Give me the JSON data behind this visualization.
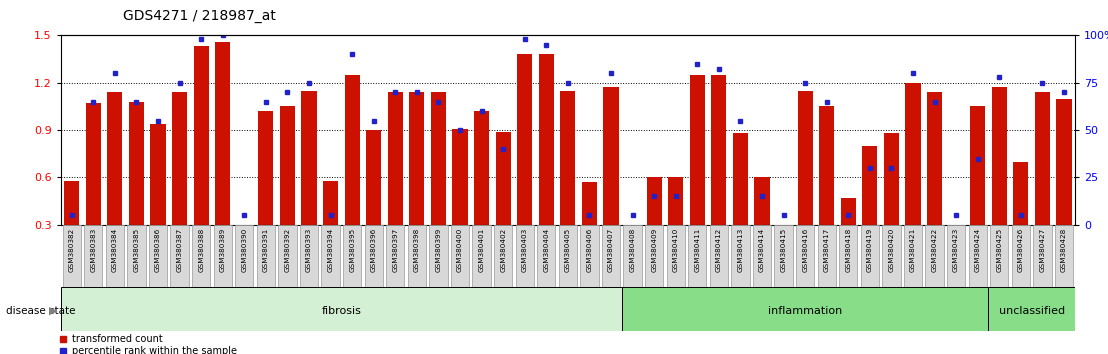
{
  "title": "GDS4271 / 218987_at",
  "samples": [
    "GSM380382",
    "GSM380383",
    "GSM380384",
    "GSM380385",
    "GSM380386",
    "GSM380387",
    "GSM380388",
    "GSM380389",
    "GSM380390",
    "GSM380391",
    "GSM380392",
    "GSM380393",
    "GSM380394",
    "GSM380395",
    "GSM380396",
    "GSM380397",
    "GSM380398",
    "GSM380399",
    "GSM380400",
    "GSM380401",
    "GSM380402",
    "GSM380403",
    "GSM380404",
    "GSM380405",
    "GSM380406",
    "GSM380407",
    "GSM380408",
    "GSM380409",
    "GSM380410",
    "GSM380411",
    "GSM380412",
    "GSM380413",
    "GSM380414",
    "GSM380415",
    "GSM380416",
    "GSM380417",
    "GSM380418",
    "GSM380419",
    "GSM380420",
    "GSM380421",
    "GSM380422",
    "GSM380423",
    "GSM380424",
    "GSM380425",
    "GSM380426",
    "GSM380427",
    "GSM380428"
  ],
  "bar_values": [
    0.58,
    1.07,
    1.14,
    1.08,
    0.94,
    1.14,
    1.43,
    1.46,
    0.3,
    1.02,
    1.05,
    1.15,
    0.58,
    1.25,
    0.9,
    1.14,
    1.14,
    1.14,
    0.91,
    1.02,
    0.89,
    1.38,
    1.38,
    1.15,
    0.57,
    1.17,
    0.3,
    0.6,
    0.6,
    1.25,
    1.25,
    0.88,
    0.6,
    0.3,
    1.15,
    1.05,
    0.47,
    0.8,
    0.88,
    1.2,
    1.14,
    0.3,
    1.05,
    1.17,
    0.7,
    1.14,
    1.1
  ],
  "dot_values_pct": [
    5,
    65,
    80,
    65,
    55,
    75,
    98,
    100,
    5,
    65,
    70,
    75,
    5,
    90,
    55,
    70,
    70,
    65,
    50,
    60,
    40,
    98,
    95,
    75,
    5,
    80,
    5,
    15,
    15,
    85,
    82,
    55,
    15,
    5,
    75,
    65,
    5,
    30,
    30,
    80,
    65,
    5,
    35,
    78,
    5,
    75,
    70
  ],
  "groups": [
    {
      "label": "fibrosis",
      "start": 0,
      "end": 26,
      "color": "#ccf0cc"
    },
    {
      "label": "inflammation",
      "start": 26,
      "end": 43,
      "color": "#88dd88"
    },
    {
      "label": "unclassified",
      "start": 43,
      "end": 47,
      "color": "#88dd88"
    }
  ],
  "bar_color": "#cc1100",
  "dot_color": "#2222cc",
  "ylim_left": [
    0.3,
    1.5
  ],
  "ylim_right": [
    0,
    100
  ],
  "yticks_left": [
    0.3,
    0.6,
    0.9,
    1.2,
    1.5
  ],
  "yticks_right": [
    0,
    25,
    50,
    75,
    100
  ],
  "dotted_lines": [
    0.6,
    0.9,
    1.2
  ],
  "bar_width": 0.7
}
